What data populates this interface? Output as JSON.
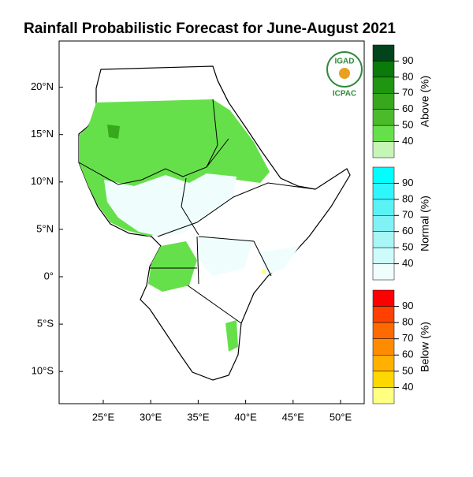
{
  "title": "Rainfall Probabilistic Forecast for June-August 2021",
  "map": {
    "lon_ticks": [
      {
        "value": 25,
        "label": "25°E"
      },
      {
        "value": 30,
        "label": "30°E"
      },
      {
        "value": 35,
        "label": "35°E"
      },
      {
        "value": 40,
        "label": "40°E"
      },
      {
        "value": 45,
        "label": "45°E"
      },
      {
        "value": 50,
        "label": "50°E"
      }
    ],
    "lat_ticks": [
      {
        "value": 20,
        "label": "20°N"
      },
      {
        "value": 15,
        "label": "15°N"
      },
      {
        "value": 10,
        "label": "10°N"
      },
      {
        "value": 5,
        "label": "5°N"
      },
      {
        "value": 0,
        "label": "0°"
      },
      {
        "value": -5,
        "label": "5°S"
      },
      {
        "value": -10,
        "label": "10°S"
      }
    ]
  },
  "logo": {
    "name": "IGAD",
    "org": "ICPAC"
  },
  "legends": [
    {
      "title": "Above (%)",
      "colors": [
        "#00441b",
        "#0a7a0a",
        "#1f960f",
        "#37a81c",
        "#4cbb2a",
        "#66e04a",
        "#c6f6b6"
      ],
      "labels": [
        90,
        80,
        70,
        60,
        50,
        40
      ]
    },
    {
      "title": "Normal (%)",
      "colors": [
        "#00ffff",
        "#2ef6fb",
        "#5af2f5",
        "#80f2f5",
        "#a8f6f6",
        "#cdfbfb",
        "#effdfd"
      ],
      "labels": [
        90,
        80,
        70,
        60,
        50,
        40
      ]
    },
    {
      "title": "Below (%)",
      "colors": [
        "#ff0000",
        "#ff4000",
        "#ff6a00",
        "#ff8c00",
        "#ffb000",
        "#ffd700",
        "#ffff80"
      ],
      "labels": [
        90,
        80,
        70,
        60,
        50,
        40
      ]
    }
  ]
}
